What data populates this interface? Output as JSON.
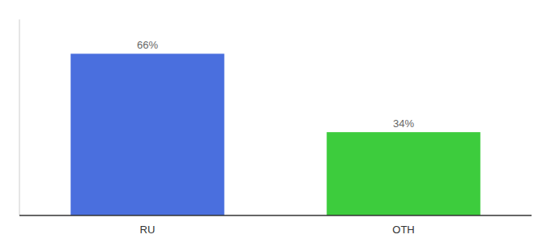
{
  "chart_data": {
    "type": "bar",
    "categories": [
      "RU",
      "OTH"
    ],
    "values": [
      66,
      34
    ],
    "value_labels": [
      "66%",
      "34%"
    ],
    "colors": [
      "#4a6fde",
      "#3dcc3d"
    ],
    "ylim": [
      0,
      80
    ],
    "data_labels": true,
    "tick_labels": "x",
    "grid": false
  }
}
